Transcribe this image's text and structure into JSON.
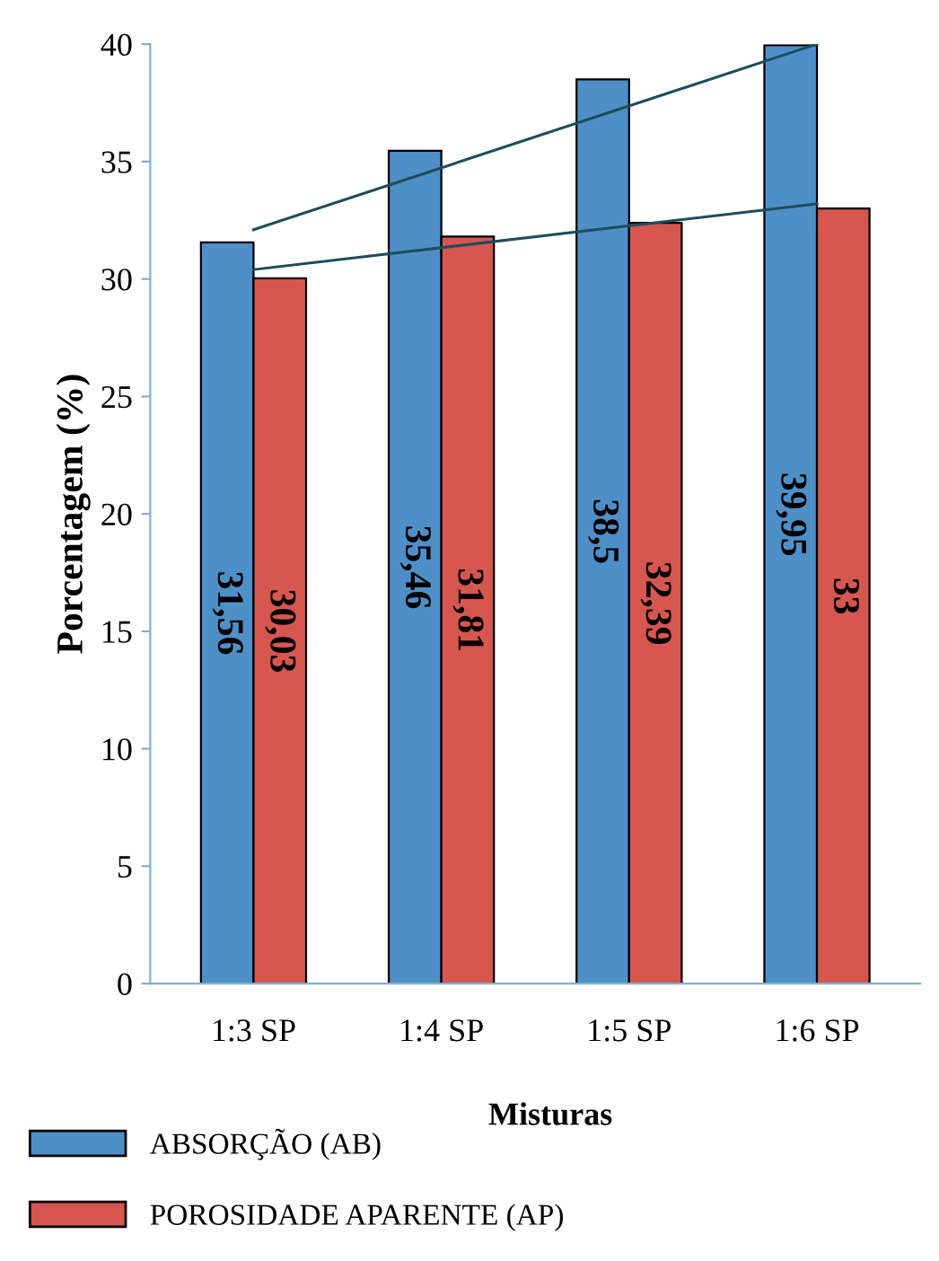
{
  "chart_data": {
    "type": "bar",
    "ylabel": "Porcentagem (%)",
    "xlabel": "Misturas",
    "categories": [
      "1:3 SP",
      "1:4 SP",
      "1:5 SP",
      "1:6 SP"
    ],
    "series": [
      {
        "name": "ABSORÇÃO (AB)",
        "color": "#4f8fc8",
        "values": [
          31.56,
          35.46,
          38.5,
          39.95
        ],
        "value_labels": [
          "31,56",
          "35,46",
          "38,5",
          "39,95"
        ]
      },
      {
        "name": "POROSIDADE APARENTE (AP)",
        "color": "#d65650",
        "values": [
          30.03,
          31.81,
          32.39,
          33
        ],
        "value_labels": [
          "30,03",
          "31,81",
          "32,39",
          "33"
        ]
      },
      {
        "type": "line",
        "color": "#1e4d5c",
        "x": [
          "1:3 SP",
          "1:6 SP"
        ],
        "values": [
          32.1,
          40.0
        ]
      },
      {
        "type": "line",
        "color": "#1e4d5c",
        "x": [
          "1:3 SP",
          "1:6 SP"
        ],
        "values": [
          30.4,
          33.2
        ]
      }
    ],
    "ylim": [
      0,
      40
    ],
    "yticks": [
      0,
      5,
      10,
      15,
      20,
      25,
      30,
      35,
      40
    ],
    "grid": false,
    "legend": "bottom left"
  }
}
